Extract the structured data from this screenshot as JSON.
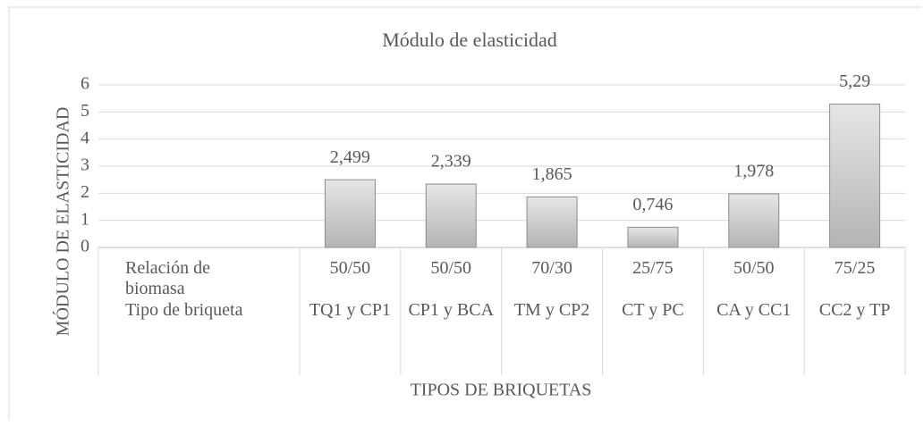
{
  "chart_data": {
    "type": "bar",
    "title": "Módulo de elasticidad",
    "y_label": "MÓDULO DE ELASTICIDAD",
    "x_label": "TIPOS DE BRIQUETAS",
    "category_levels": [
      {
        "name": "Relación de biomasa",
        "labels": [
          "50/50",
          "50/50",
          "70/30",
          "25/75",
          "50/50",
          "75/25"
        ]
      },
      {
        "name": "Tipo de briqueta",
        "labels": [
          "TQ1 y CP1",
          "CP1 y BCA",
          "TM y CP2",
          "CT y PC",
          "CA y CC1",
          "CC2 y TP"
        ]
      }
    ],
    "values": [
      2.499,
      2.339,
      1.865,
      0.746,
      1.978,
      5.29
    ],
    "value_labels": [
      "2,499",
      "2,339",
      "1,865",
      "0,746",
      "1,978",
      "5,29"
    ],
    "color": "#c8c8c8",
    "ylim": [
      0,
      6
    ],
    "yticks": [
      0,
      1,
      2,
      3,
      4,
      5,
      6
    ],
    "grid": true
  }
}
